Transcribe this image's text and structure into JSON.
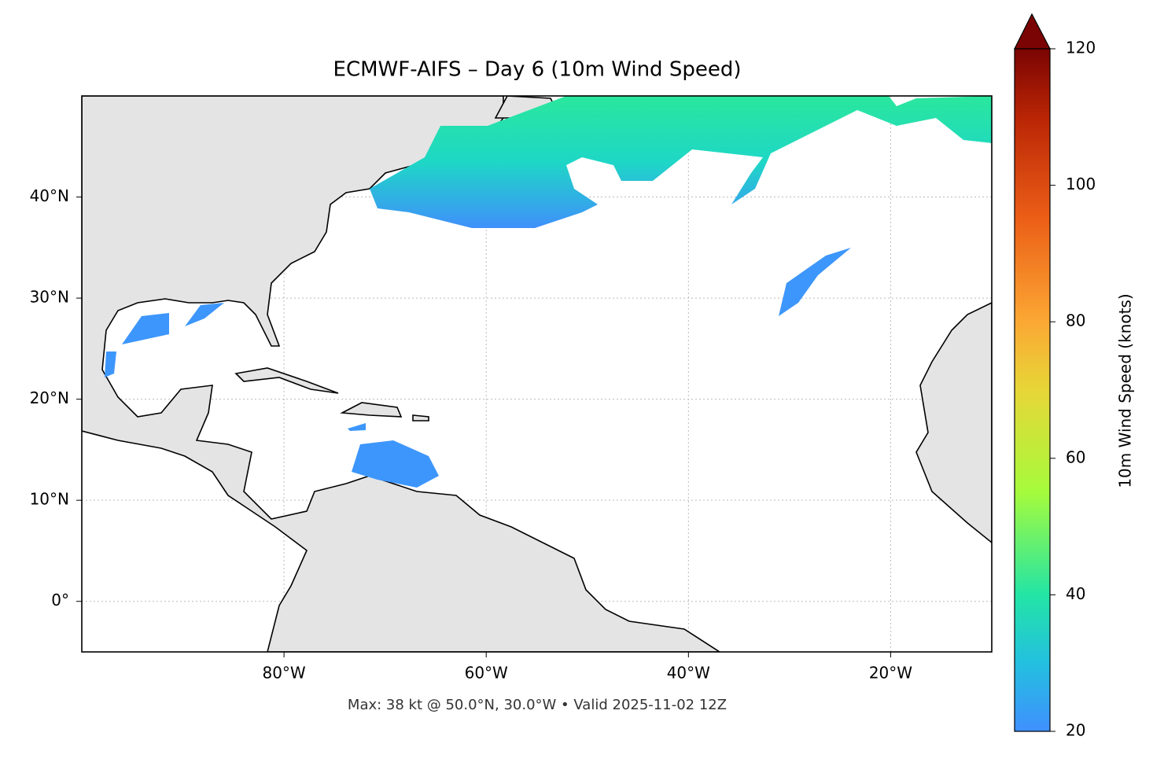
{
  "title": "ECMWF-AIFS – Day 6 (10m Wind Speed)",
  "footer": "Max: 38 kt @ 50.0°N, 30.0°W • Valid 2025-11-02 12Z",
  "map": {
    "lon_range": [
      -100,
      -10
    ],
    "lat_range": [
      -5,
      50
    ],
    "grid": true,
    "xticks": [
      {
        "value": -80,
        "label": "80°W"
      },
      {
        "value": -60,
        "label": "60°W"
      },
      {
        "value": -40,
        "label": "40°W"
      },
      {
        "value": -20,
        "label": "20°W"
      }
    ],
    "yticks": [
      {
        "value": 0,
        "label": "0°"
      },
      {
        "value": 10,
        "label": "10°N"
      },
      {
        "value": 20,
        "label": "20°N"
      },
      {
        "value": 30,
        "label": "30°N"
      },
      {
        "value": 40,
        "label": "40°N"
      }
    ]
  },
  "colorbar": {
    "label": "10m Wind Speed (knots)",
    "lim": [
      20,
      120
    ],
    "ticks": [
      20,
      40,
      60,
      80,
      100,
      120
    ],
    "extend": "max"
  }
}
